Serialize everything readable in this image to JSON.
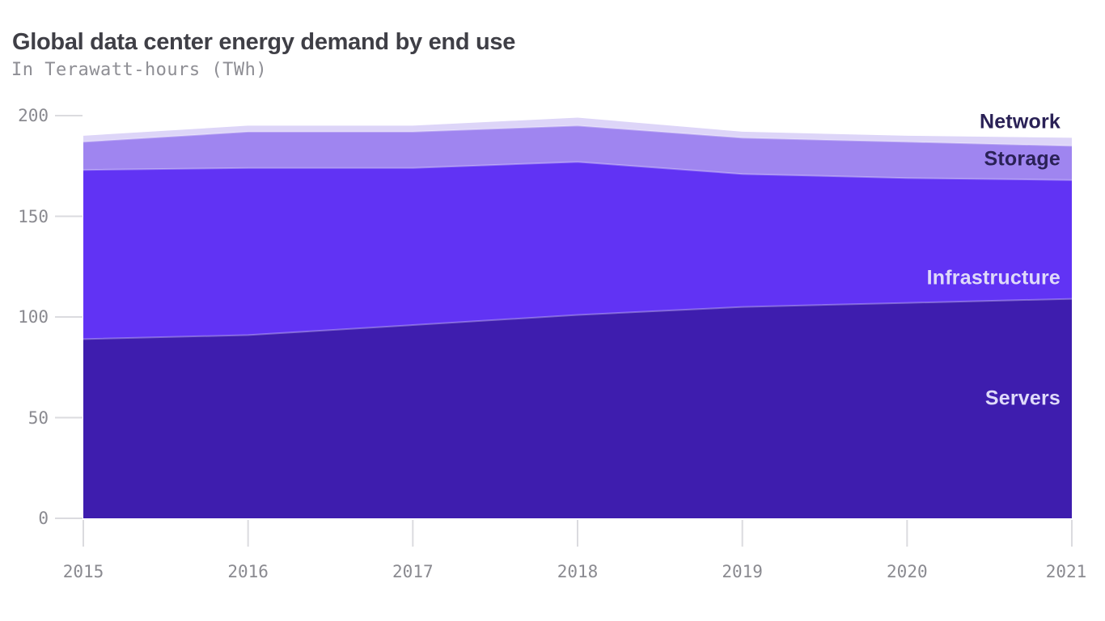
{
  "header": {
    "title": "Global data center energy demand by end use",
    "subtitle": "In Terawatt-hours (TWh)"
  },
  "chart_data": {
    "type": "area",
    "stacked": true,
    "title": "Global data center energy demand by end use",
    "subtitle": "In Terawatt-hours (TWh)",
    "unit": "TWh",
    "xlabel": "",
    "ylabel": "Terawatt-hours (TWh)",
    "x": [
      2015,
      2016,
      2017,
      2018,
      2019,
      2020,
      2021
    ],
    "x_tick_labels": [
      "2015",
      "2016",
      "2017",
      "2018",
      "2019",
      "2020",
      "2021"
    ],
    "y_ticks": [
      0,
      50,
      100,
      150,
      200
    ],
    "y_tick_labels": [
      "0",
      "50",
      "100",
      "150",
      "200"
    ],
    "ylim": [
      0,
      200
    ],
    "grid": false,
    "legend_position": "inline-right",
    "series": [
      {
        "name": "Servers",
        "values": [
          89,
          91,
          96,
          101,
          105,
          107,
          109
        ],
        "color": "#3E1DAE",
        "label_color": "#DFDAF9"
      },
      {
        "name": "Infrastructure",
        "values": [
          84,
          83,
          78,
          76,
          66,
          62,
          59
        ],
        "color": "#6133F4",
        "label_color": "#DFDAF9"
      },
      {
        "name": "Storage",
        "values": [
          14,
          18,
          18,
          18,
          18,
          18,
          17
        ],
        "color": "#9F85F0",
        "label_color": "#2A2156"
      },
      {
        "name": "Network",
        "values": [
          3,
          3,
          3,
          4,
          3,
          3,
          4
        ],
        "color": "#DDD5F8",
        "label_color": "#2A2156"
      }
    ],
    "totals": [
      190,
      195,
      195,
      199,
      192,
      190,
      189
    ]
  },
  "colors": {
    "title_text": "#3F3F46",
    "subtitle_text": "#8E8E94",
    "axis_tick_text": "#8A8A90",
    "axis_tick_line": "#DBDBDF",
    "background": "#FFFFFF"
  }
}
